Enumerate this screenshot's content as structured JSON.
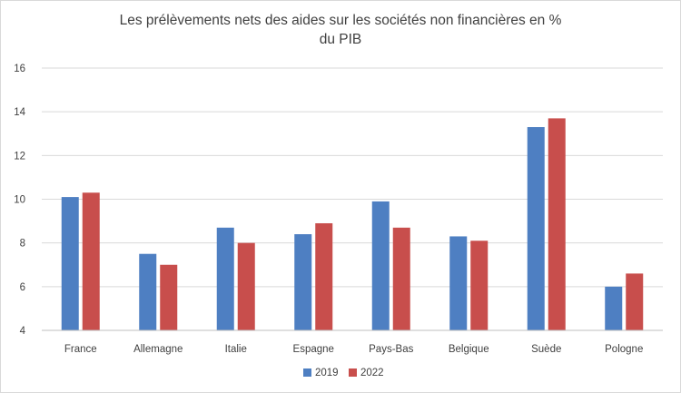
{
  "chart_data": {
    "type": "bar",
    "title_line1": "Les prélèvements nets des aides sur les sociétés non financières en %",
    "title_line2": "du PIB",
    "categories": [
      "France",
      "Allemagne",
      "Italie",
      "Espagne",
      "Pays-Bas",
      "Belgique",
      "Suède",
      "Pologne"
    ],
    "series": [
      {
        "name": "2019",
        "color": "#4e7fc2",
        "values": [
          10.1,
          7.5,
          8.7,
          8.4,
          9.9,
          8.3,
          13.3,
          6.0
        ]
      },
      {
        "name": "2022",
        "color": "#c84e4c",
        "values": [
          10.3,
          7.0,
          8.0,
          8.9,
          8.7,
          8.1,
          13.7,
          6.6
        ]
      }
    ],
    "ylim": [
      4,
      16
    ],
    "yticks": [
      "4",
      "6",
      "8",
      "10",
      "12",
      "14",
      "16"
    ],
    "grid": true,
    "legend_position": "bottom",
    "xlabel": "",
    "ylabel": ""
  }
}
